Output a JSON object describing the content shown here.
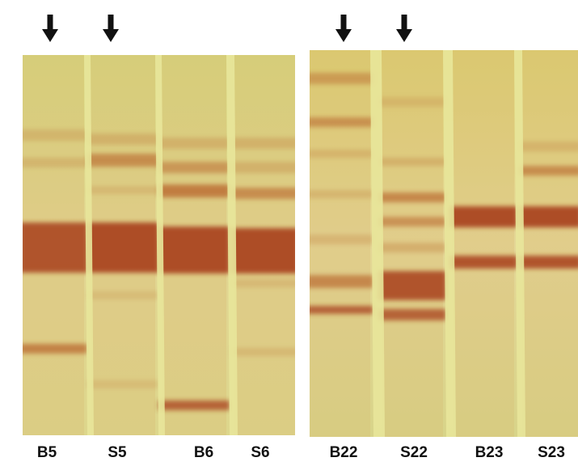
{
  "lanes": {
    "left": [
      "B5",
      "S5",
      "B6",
      "S6"
    ],
    "right": [
      "B22",
      "S22",
      "B23",
      "S23"
    ]
  }
}
